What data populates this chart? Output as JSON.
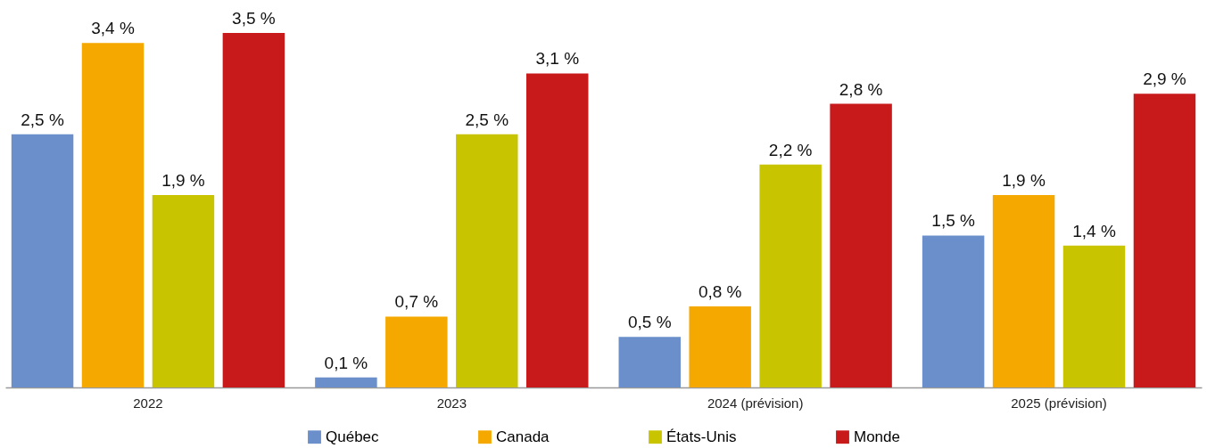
{
  "chart_data": {
    "type": "bar",
    "categories": [
      "2022",
      "2023",
      "2024 (prévision)",
      "2025 (prévision)"
    ],
    "series": [
      {
        "name": "Québec",
        "color": "#6a8fcb",
        "values": [
          2.5,
          0.1,
          0.5,
          1.5
        ],
        "value_labels": [
          "2,5 %",
          "0,1 %",
          "0,5 %",
          "1,5 %"
        ]
      },
      {
        "name": "Canada",
        "color": "#f5a800",
        "values": [
          3.4,
          0.7,
          0.8,
          1.9
        ],
        "value_labels": [
          "3,4 %",
          "0,7 %",
          "0,8 %",
          "1,9 %"
        ]
      },
      {
        "name": "États-Unis",
        "color": "#c9c400",
        "values": [
          1.9,
          2.5,
          2.2,
          1.4
        ],
        "value_labels": [
          "1,9 %",
          "2,5 %",
          "2,2 %",
          "1,4 %"
        ]
      },
      {
        "name": "Monde",
        "color": "#c8191b",
        "values": [
          3.5,
          3.1,
          2.8,
          2.9
        ],
        "value_labels": [
          "3,5 %",
          "3,1 %",
          "2,8 %",
          "2,9 %"
        ]
      }
    ],
    "legend": "bottom",
    "grid": false
  }
}
